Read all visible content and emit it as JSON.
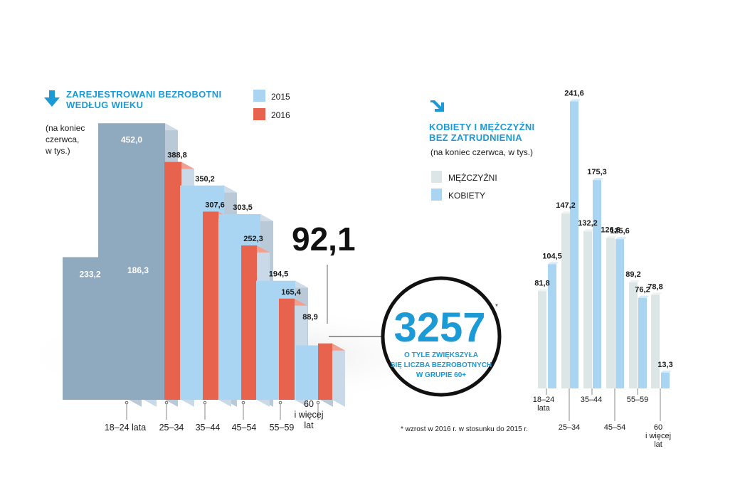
{
  "left_chart": {
    "title_line1": "ZAREJESTROWANI BEZROBOTNI",
    "title_line2": "WEDŁUG WIEKU",
    "subtitle_line1": "(na koniec",
    "subtitle_line2": "czerwca,",
    "subtitle_line3": "w tys.)",
    "legend_2015": "2015",
    "legend_2016": "2016",
    "highlight_value": "92,1"
  },
  "right_chart": {
    "title_line1": "KOBIETY I MĘŻCZYŹNI",
    "title_line2": "BEZ ZATRUDNIENIA",
    "subtitle": "(na koniec czerwca, w tys.)",
    "legend_men": "MĘŻCZYŹNI",
    "legend_women": "KOBIETY"
  },
  "callout": {
    "number": "3257",
    "asterisk": "*",
    "line1": "O TYLE ZWIĘKSZYŁA",
    "line2": "SIĘ LICZBA BEZROBOTNYCH",
    "line3": "W GRUPIE 60+",
    "footnote": "* wzrost w 2016 r. w stosunku do 2015 r."
  },
  "colors": {
    "y2015_front": "#a9d4f2",
    "y2015_side": "#8fa9bf",
    "y2016_front": "#e8634d",
    "y2016_side": "#bfd3e6",
    "men": "#dde6e6",
    "women": "#a9d4f2",
    "accent": "#1c9ad6"
  },
  "chart_data": [
    {
      "type": "bar",
      "title": "ZAREJESTROWANI BEZROBOTNI WEDŁUG WIEKU",
      "subtitle": "(na koniec czerwca, w tys.)",
      "categories": [
        "18–24 lata",
        "25–34",
        "35–44",
        "45–54",
        "55–59",
        "60 i więcej lat"
      ],
      "series": [
        {
          "name": "2015",
          "values": [
            233.2,
            452.0,
            350.2,
            303.5,
            194.5,
            88.9
          ],
          "labels": [
            "233,2",
            "452,0",
            "350,2",
            "303,5",
            "194,5",
            "88,9"
          ]
        },
        {
          "name": "2016",
          "values": [
            186.3,
            388.8,
            307.6,
            252.3,
            165.4,
            92.1
          ],
          "labels": [
            "186,3",
            "388,8",
            "307,6",
            "252,3",
            "165,4",
            "92,1"
          ]
        }
      ],
      "ylim": [
        0,
        460
      ]
    },
    {
      "type": "bar",
      "title": "KOBIETY I MĘŻCZYŹNI BEZ ZATRUDNIENIA",
      "subtitle": "(na koniec czerwca, w tys.)",
      "categories": [
        "18–24 lata",
        "25–34",
        "35–44",
        "45–54",
        "55–59",
        "60 i więcej lat"
      ],
      "series": [
        {
          "name": "MĘŻCZYŹNI",
          "values": [
            81.8,
            147.2,
            132.2,
            126.6,
            89.2,
            78.8
          ],
          "labels": [
            "81,8",
            "147,2",
            "132,2",
            "126,6",
            "89,2",
            "78,8"
          ]
        },
        {
          "name": "KOBIETY",
          "values": [
            104.5,
            241.6,
            175.3,
            125.6,
            76.2,
            13.3
          ],
          "labels": [
            "104,5",
            "241,6",
            "175,3",
            "125,6",
            "76,2",
            "13,3"
          ]
        }
      ],
      "ylim": [
        0,
        250
      ]
    }
  ]
}
